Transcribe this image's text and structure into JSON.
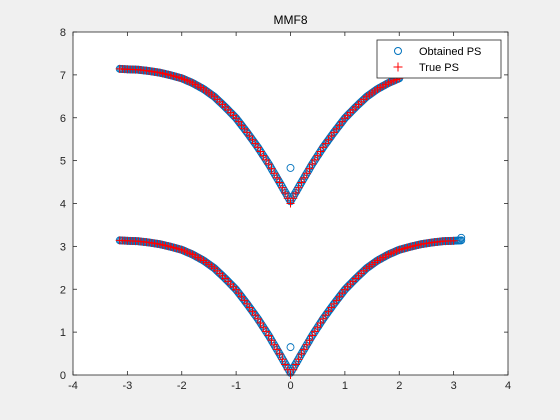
{
  "chart_data": {
    "type": "scatter",
    "title": "MMF8",
    "xlabel": "",
    "ylabel": "",
    "xlim": [
      -4,
      4
    ],
    "ylim": [
      0,
      8
    ],
    "xticks": [
      "-4",
      "-3",
      "-2",
      "-1",
      "0",
      "1",
      "2",
      "3",
      "4"
    ],
    "yticks": [
      "0",
      "1",
      "2",
      "3",
      "4",
      "5",
      "6",
      "7",
      "8"
    ],
    "grid": false,
    "legend_position": "top-right",
    "series": [
      {
        "name": "Obtained PS",
        "marker": "circle",
        "color": "#0072bd",
        "curves": [
          {
            "x": [
              -3.14,
              -3.0,
              -2.8,
              -2.6,
              -2.4,
              -2.2,
              -2.0,
              -1.8,
              -1.6,
              -1.4,
              -1.2,
              -1.0,
              -0.8,
              -0.6,
              -0.4,
              -0.2,
              0.0,
              0.2,
              0.4,
              0.6,
              0.8,
              1.0,
              1.2,
              1.4,
              1.6,
              1.8,
              2.0,
              2.2,
              2.4,
              2.6,
              2.8,
              3.0,
              3.14
            ],
            "y": [
              3.14,
              3.13,
              3.12,
              3.09,
              3.05,
              2.99,
              2.92,
              2.81,
              2.67,
              2.49,
              2.25,
              1.99,
              1.66,
              1.31,
              0.92,
              0.49,
              0.05,
              0.49,
              0.92,
              1.31,
              1.66,
              1.99,
              2.25,
              2.49,
              2.67,
              2.81,
              2.92,
              2.99,
              3.05,
              3.09,
              3.12,
              3.13,
              3.14
            ]
          },
          {
            "x": [
              -3.14,
              -3.0,
              -2.8,
              -2.6,
              -2.4,
              -2.2,
              -2.0,
              -1.8,
              -1.6,
              -1.4,
              -1.2,
              -1.0,
              -0.8,
              -0.6,
              -0.4,
              -0.2,
              0.0,
              0.2,
              0.4,
              0.6,
              0.8,
              1.0,
              1.2,
              1.4,
              1.6,
              1.8,
              2.0
            ],
            "y": [
              7.14,
              7.13,
              7.12,
              7.09,
              7.05,
              6.99,
              6.92,
              6.81,
              6.67,
              6.49,
              6.25,
              5.99,
              5.66,
              5.31,
              4.92,
              4.49,
              4.05,
              4.49,
              4.92,
              5.31,
              5.66,
              5.99,
              6.25,
              6.49,
              6.67,
              6.81,
              6.92
            ]
          }
        ],
        "outliers": {
          "x": [
            0.0,
            0.0,
            3.14
          ],
          "y": [
            4.83,
            0.65,
            3.2
          ]
        }
      },
      {
        "name": "True PS",
        "marker": "plus",
        "color": "#ff0000",
        "curves": [
          {
            "x": [
              -3.14,
              -3.0,
              -2.8,
              -2.6,
              -2.4,
              -2.2,
              -2.0,
              -1.8,
              -1.6,
              -1.4,
              -1.2,
              -1.0,
              -0.8,
              -0.6,
              -0.4,
              -0.2,
              0.0,
              0.2,
              0.4,
              0.6,
              0.8,
              1.0,
              1.2,
              1.4,
              1.6,
              1.8,
              2.0,
              2.2,
              2.4,
              2.6,
              2.8,
              3.0
            ],
            "y": [
              3.14,
              3.13,
              3.12,
              3.09,
              3.05,
              2.99,
              2.92,
              2.81,
              2.67,
              2.49,
              2.25,
              1.99,
              1.66,
              1.31,
              0.92,
              0.49,
              0.0,
              0.49,
              0.92,
              1.31,
              1.66,
              1.99,
              2.25,
              2.49,
              2.67,
              2.81,
              2.92,
              2.99,
              3.05,
              3.09,
              3.12,
              3.13
            ]
          },
          {
            "x": [
              -3.14,
              -3.0,
              -2.8,
              -2.6,
              -2.4,
              -2.2,
              -2.0,
              -1.8,
              -1.6,
              -1.4,
              -1.2,
              -1.0,
              -0.8,
              -0.6,
              -0.4,
              -0.2,
              0.0,
              0.2,
              0.4,
              0.6,
              0.8,
              1.0,
              1.2,
              1.4,
              1.6,
              1.8,
              2.0
            ],
            "y": [
              7.14,
              7.13,
              7.12,
              7.09,
              7.05,
              6.99,
              6.92,
              6.81,
              6.67,
              6.49,
              6.25,
              5.99,
              5.66,
              5.31,
              4.92,
              4.49,
              4.0,
              4.49,
              4.92,
              5.31,
              5.66,
              5.99,
              6.25,
              6.49,
              6.67,
              6.81,
              6.92
            ]
          }
        ]
      }
    ]
  }
}
